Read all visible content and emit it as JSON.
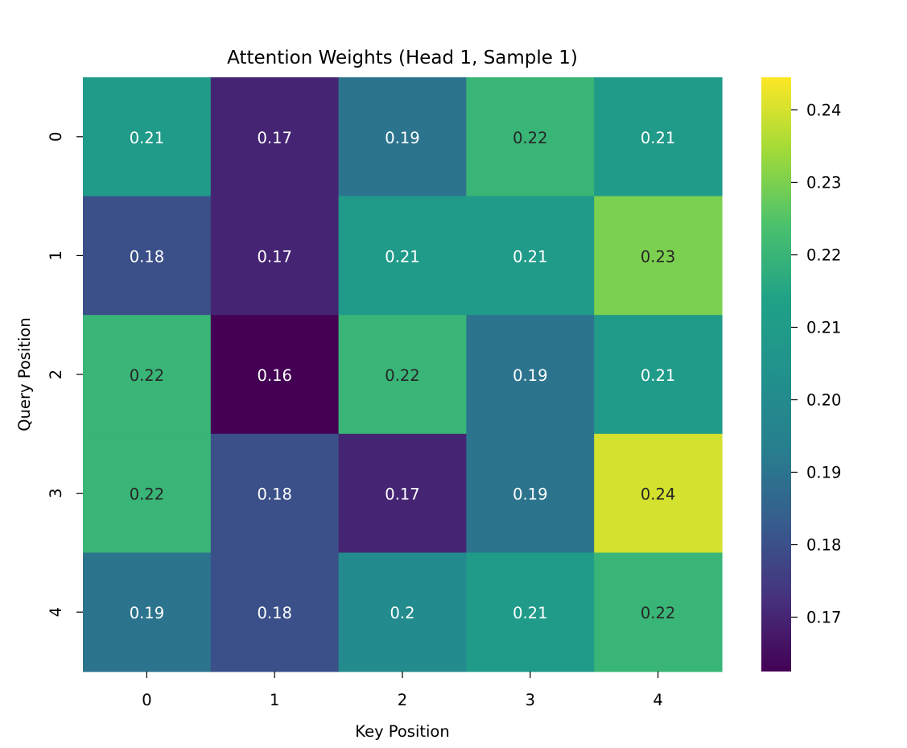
{
  "chart_data": {
    "type": "heatmap",
    "title": "Attention Weights (Head 1, Sample 1)",
    "xlabel": "Key Position",
    "ylabel": "Query Position",
    "x_categories": [
      "0",
      "1",
      "2",
      "3",
      "4"
    ],
    "y_categories": [
      "0",
      "1",
      "2",
      "3",
      "4"
    ],
    "values": [
      [
        0.21,
        0.17,
        0.19,
        0.22,
        0.21
      ],
      [
        0.18,
        0.17,
        0.21,
        0.21,
        0.23
      ],
      [
        0.22,
        0.16,
        0.22,
        0.19,
        0.21
      ],
      [
        0.22,
        0.18,
        0.17,
        0.19,
        0.24
      ],
      [
        0.19,
        0.18,
        0.2,
        0.21,
        0.22
      ]
    ],
    "colormap": "viridis",
    "color_range": [
      0.1625,
      0.2445
    ],
    "colorbar_ticks": [
      "0.24",
      "0.23",
      "0.22",
      "0.21",
      "0.20",
      "0.19",
      "0.18",
      "0.17"
    ],
    "colorbar_tick_values": [
      0.24,
      0.23,
      0.22,
      0.21,
      0.2,
      0.19,
      0.18,
      0.17
    ],
    "dark_text_color": "#262626",
    "light_text_color": "#ffffff"
  }
}
